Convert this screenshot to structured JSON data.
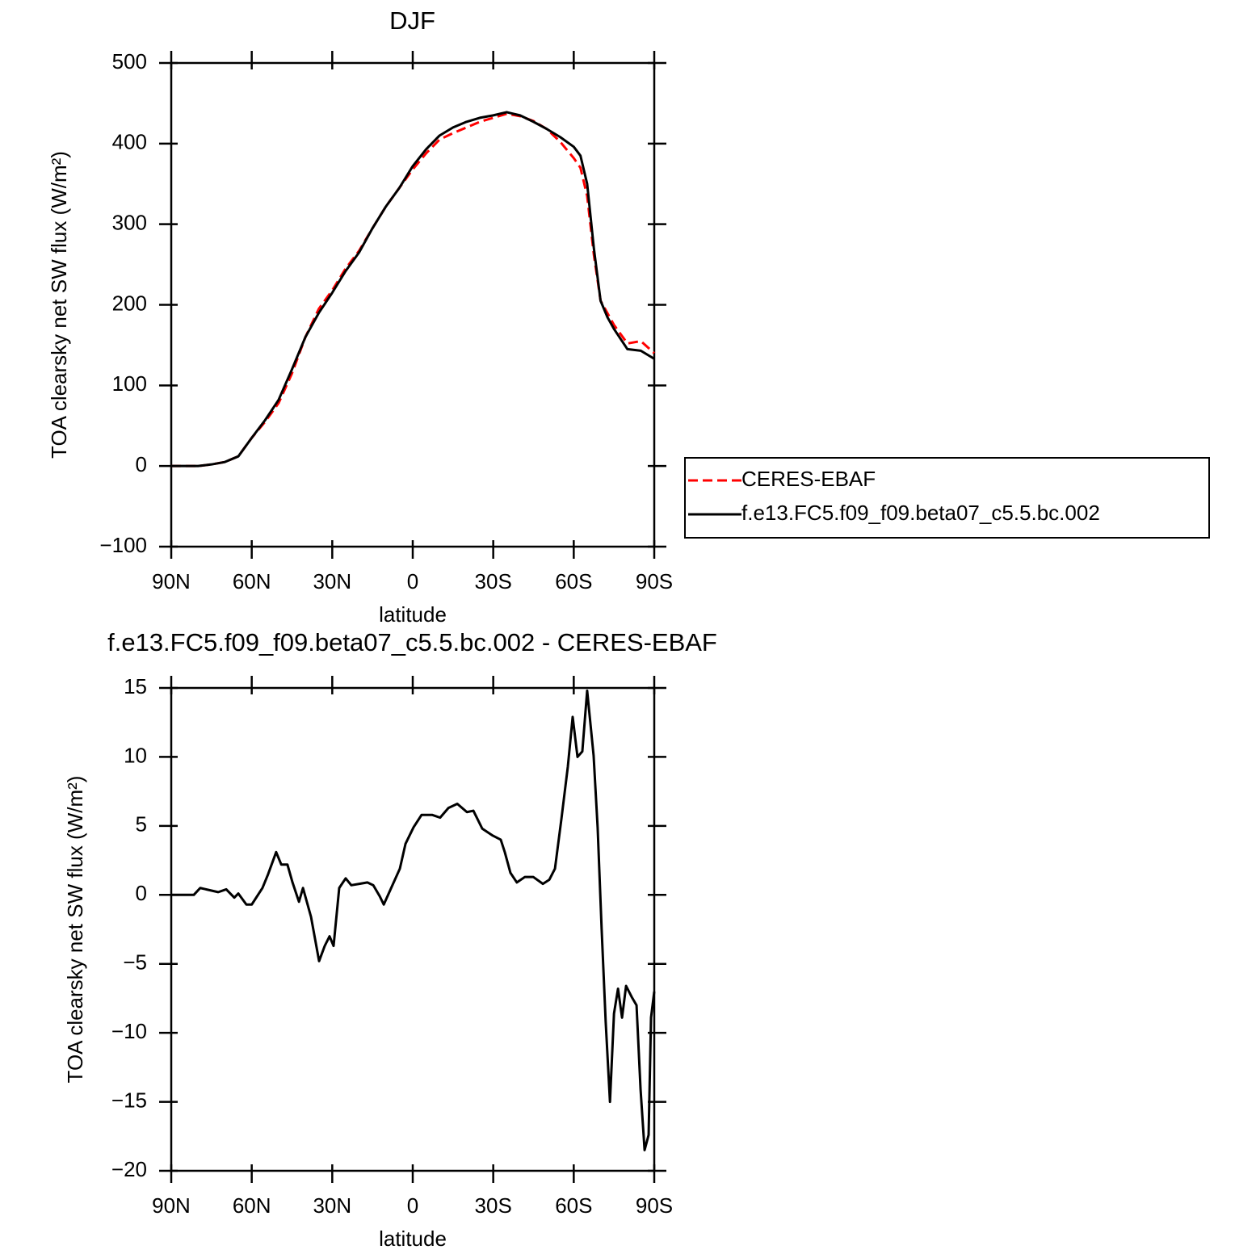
{
  "chart_data": [
    {
      "type": "line",
      "title": "DJF",
      "xlabel": "latitude",
      "ylabel": "TOA clearsky net SW flux (W/m²)",
      "x": [
        90,
        85,
        80,
        75,
        70,
        65,
        60,
        55,
        50,
        45,
        40,
        35,
        30,
        25,
        20,
        15,
        10,
        5,
        0,
        -5,
        -10,
        -15,
        -20,
        -25,
        -30,
        -35,
        -40,
        -45,
        -50,
        -55,
        -60,
        -62.5,
        -65,
        -67.5,
        -70,
        -72.5,
        -75,
        -80,
        -85,
        -90
      ],
      "series": [
        {
          "name": "CERES-EBAF",
          "color": "#ff0000",
          "line_style": "dashed",
          "values": [
            0,
            0,
            0,
            2,
            5,
            12,
            35,
            55,
            78,
            115,
            160,
            195,
            218,
            245,
            267,
            295,
            322,
            345,
            368,
            388,
            405,
            413,
            420,
            427,
            432,
            437,
            434,
            428,
            418,
            402,
            382,
            370,
            335,
            262,
            205,
            190,
            175,
            152,
            155,
            140
          ]
        },
        {
          "name": "f.e13.FC5.f09_f09.beta07_c5.5.bc.002",
          "color": "#000000",
          "line_style": "solid",
          "values": [
            0,
            0,
            0,
            2,
            5,
            12,
            35,
            57,
            82,
            120,
            160,
            190,
            215,
            242,
            265,
            295,
            322,
            345,
            372,
            393,
            410,
            420,
            427,
            432,
            435,
            439,
            435,
            427,
            418,
            408,
            396,
            385,
            350,
            270,
            205,
            185,
            170,
            145,
            143,
            133
          ]
        }
      ],
      "xlim": [
        90,
        -90
      ],
      "xticks": [
        {
          "value": 90,
          "label": "90N"
        },
        {
          "value": 60,
          "label": "60N"
        },
        {
          "value": 30,
          "label": "30N"
        },
        0,
        {
          "value": -30,
          "label": "30S"
        },
        {
          "value": -60,
          "label": "60S"
        },
        {
          "value": -90,
          "label": "90S"
        }
      ],
      "ylim": [
        -100,
        500
      ],
      "yticks": [
        {
          "value": -100,
          "label": "−100"
        },
        0,
        100,
        200,
        300,
        400,
        500
      ],
      "legend": "right"
    },
    {
      "type": "line",
      "title": "f.e13.FC5.f09_f09.beta07_c5.5.bc.002 - CERES-EBAF",
      "xlabel": "latitude",
      "ylabel": "TOA clearsky net SW flux (W/m²)",
      "x": [
        90,
        81.6,
        79.2,
        72.5,
        69.5,
        66.5,
        65,
        62,
        60,
        56,
        53.9,
        50.9,
        49,
        46.7,
        44.8,
        42.4,
        40.9,
        37.9,
        34.9,
        32.8,
        31,
        29.5,
        27.4,
        25,
        22.9,
        19.9,
        16.9,
        14.7,
        12.3,
        10.8,
        7.8,
        4.8,
        2.7,
        -0.3,
        -3.3,
        -7.2,
        -10.2,
        -13.3,
        -16.6,
        -20.2,
        -22.6,
        -25.9,
        -29.8,
        -32.8,
        -34.3,
        -36.4,
        -38.8,
        -41.8,
        -44.9,
        -48.5,
        -50.9,
        -53,
        -55.4,
        -57.8,
        -59.6,
        -61.4,
        -63.2,
        -65,
        -67.4,
        -68.9,
        -70.4,
        -71.9,
        -73.5,
        -75,
        -76.5,
        -78,
        -79.5,
        -81.6,
        -83.4,
        -84.9,
        -86.4,
        -87.9,
        -88.8,
        -90
      ],
      "values": [
        0,
        0,
        0.5,
        0.2,
        0.4,
        -0.2,
        0.1,
        -0.7,
        -0.7,
        0.5,
        1.5,
        3.1,
        2.2,
        2.2,
        0.9,
        -0.5,
        0.5,
        -1.6,
        -4.8,
        -3.7,
        -3,
        -3.7,
        0.5,
        1.2,
        0.7,
        0.8,
        0.9,
        0.7,
        -0.1,
        -0.7,
        0.6,
        1.9,
        3.7,
        4.9,
        5.8,
        5.8,
        5.6,
        6.3,
        6.6,
        6,
        6.1,
        4.8,
        4.3,
        4,
        3.1,
        1.6,
        0.9,
        1.3,
        1.3,
        0.8,
        1.1,
        1.9,
        5.5,
        9.3,
        12.9,
        10,
        10.4,
        14.8,
        10.1,
        4.9,
        -2.5,
        -9.2,
        -15,
        -8.6,
        -6.8,
        -8.9,
        -6.6,
        -7.4,
        -8,
        -14.1,
        -18.5,
        -17.4,
        -8.9,
        -7
      ],
      "color": "#000000",
      "line_style": "solid",
      "xlim": [
        90,
        -90
      ],
      "xticks": [
        {
          "value": 90,
          "label": "90N"
        },
        {
          "value": 60,
          "label": "60N"
        },
        {
          "value": 30,
          "label": "30N"
        },
        0,
        {
          "value": -30,
          "label": "30S"
        },
        {
          "value": -60,
          "label": "60S"
        },
        {
          "value": -90,
          "label": "90S"
        }
      ],
      "ylim": [
        -20,
        15
      ],
      "yticks": [
        {
          "value": -20,
          "label": "−20"
        },
        {
          "value": -15,
          "label": "−15"
        },
        {
          "value": -10,
          "label": "−10"
        },
        {
          "value": -5,
          "label": "−5"
        },
        0,
        5,
        10,
        15
      ]
    }
  ]
}
